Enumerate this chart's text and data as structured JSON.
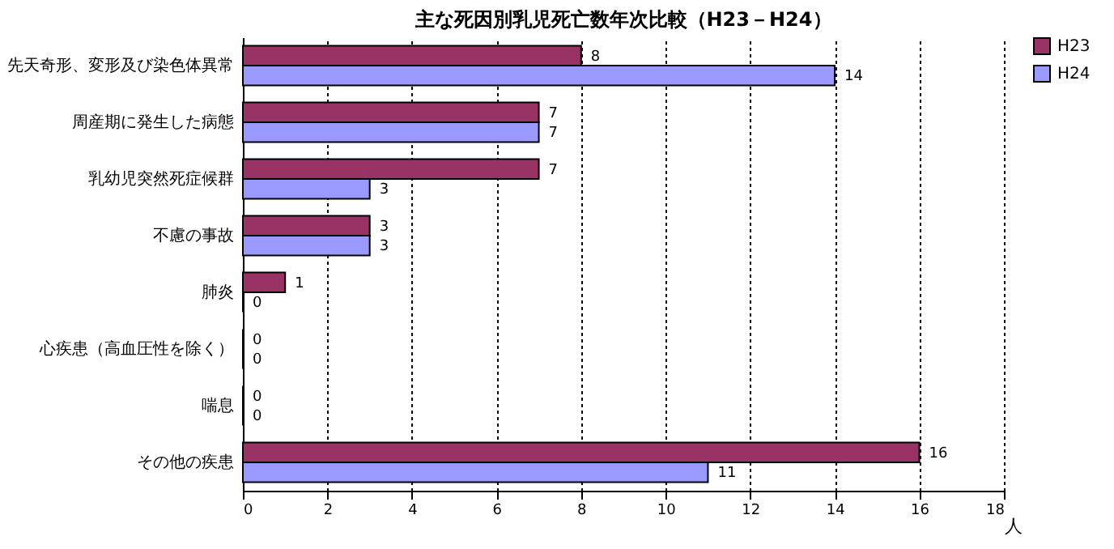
{
  "chart_data": {
    "type": "bar",
    "orientation": "horizontal",
    "title": "主な死因別乳児死亡数年次比較（H23－H24）",
    "xlabel": "人",
    "categories": [
      "先天奇形、変形及び染色体異常",
      "周産期に発生した病態",
      "乳幼児突然死症候群",
      "不慮の事故",
      "肺炎",
      "心疾患（高血圧性を除く）",
      "喘息",
      "その他の疾患"
    ],
    "series": [
      {
        "name": "H23",
        "color": "#993366",
        "values": [
          8,
          7,
          7,
          3,
          1,
          0,
          0,
          16
        ]
      },
      {
        "name": "H24",
        "color": "#9999ff",
        "values": [
          14,
          7,
          3,
          3,
          0,
          0,
          0,
          11
        ]
      }
    ],
    "xlim": [
      0,
      18
    ],
    "xticks": [
      0,
      2,
      4,
      6,
      8,
      10,
      12,
      14,
      16,
      18
    ],
    "grid": "x",
    "legend": "right",
    "data_labels": true
  }
}
